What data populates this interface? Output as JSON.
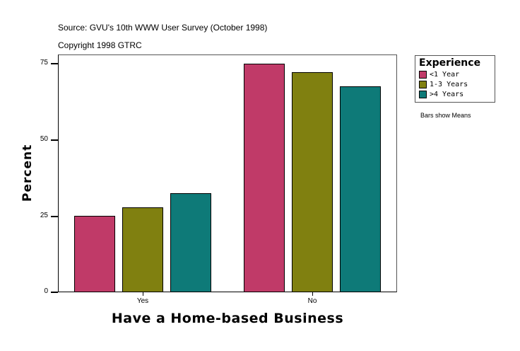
{
  "header": {
    "source": "Source: GVU's 10th WWW User Survey (October 1998)",
    "copyright": "Copyright 1998 GTRC"
  },
  "legend": {
    "title": "Experience",
    "items": [
      {
        "label": "<1 Year",
        "color": "#C03A68"
      },
      {
        "label": "1-3 Years",
        "color": "#808010"
      },
      {
        "label": ">4 Years",
        "color": "#0E7A78"
      }
    ]
  },
  "note": "Bars show Means",
  "axes": {
    "xlabel": "Have a Home-based Business",
    "ylabel": "Percent",
    "yticks": [
      "0",
      "25",
      "50",
      "75"
    ],
    "xticks": [
      "Yes",
      "No"
    ]
  },
  "chart_data": {
    "type": "bar",
    "title": "",
    "subtitle": "Source: GVU's 10th WWW User Survey (October 1998); Copyright 1998 GTRC",
    "xlabel": "Have a Home-based Business",
    "ylabel": "Percent",
    "categories": [
      "Yes",
      "No"
    ],
    "series": [
      {
        "name": "<1 Year",
        "values": [
          25.0,
          75.0
        ],
        "color": "#C03A68"
      },
      {
        "name": "1-3 Years",
        "values": [
          27.9,
          72.1
        ],
        "color": "#808010"
      },
      {
        "name": ">4 Years",
        "values": [
          32.5,
          67.5
        ],
        "color": "#0E7A78"
      }
    ],
    "ylim": [
      0,
      78
    ],
    "yticks": [
      0,
      25,
      50,
      75
    ],
    "legend_title": "Experience",
    "legend_position": "right",
    "grid": false,
    "annotations": [
      "Bars show Means"
    ]
  }
}
